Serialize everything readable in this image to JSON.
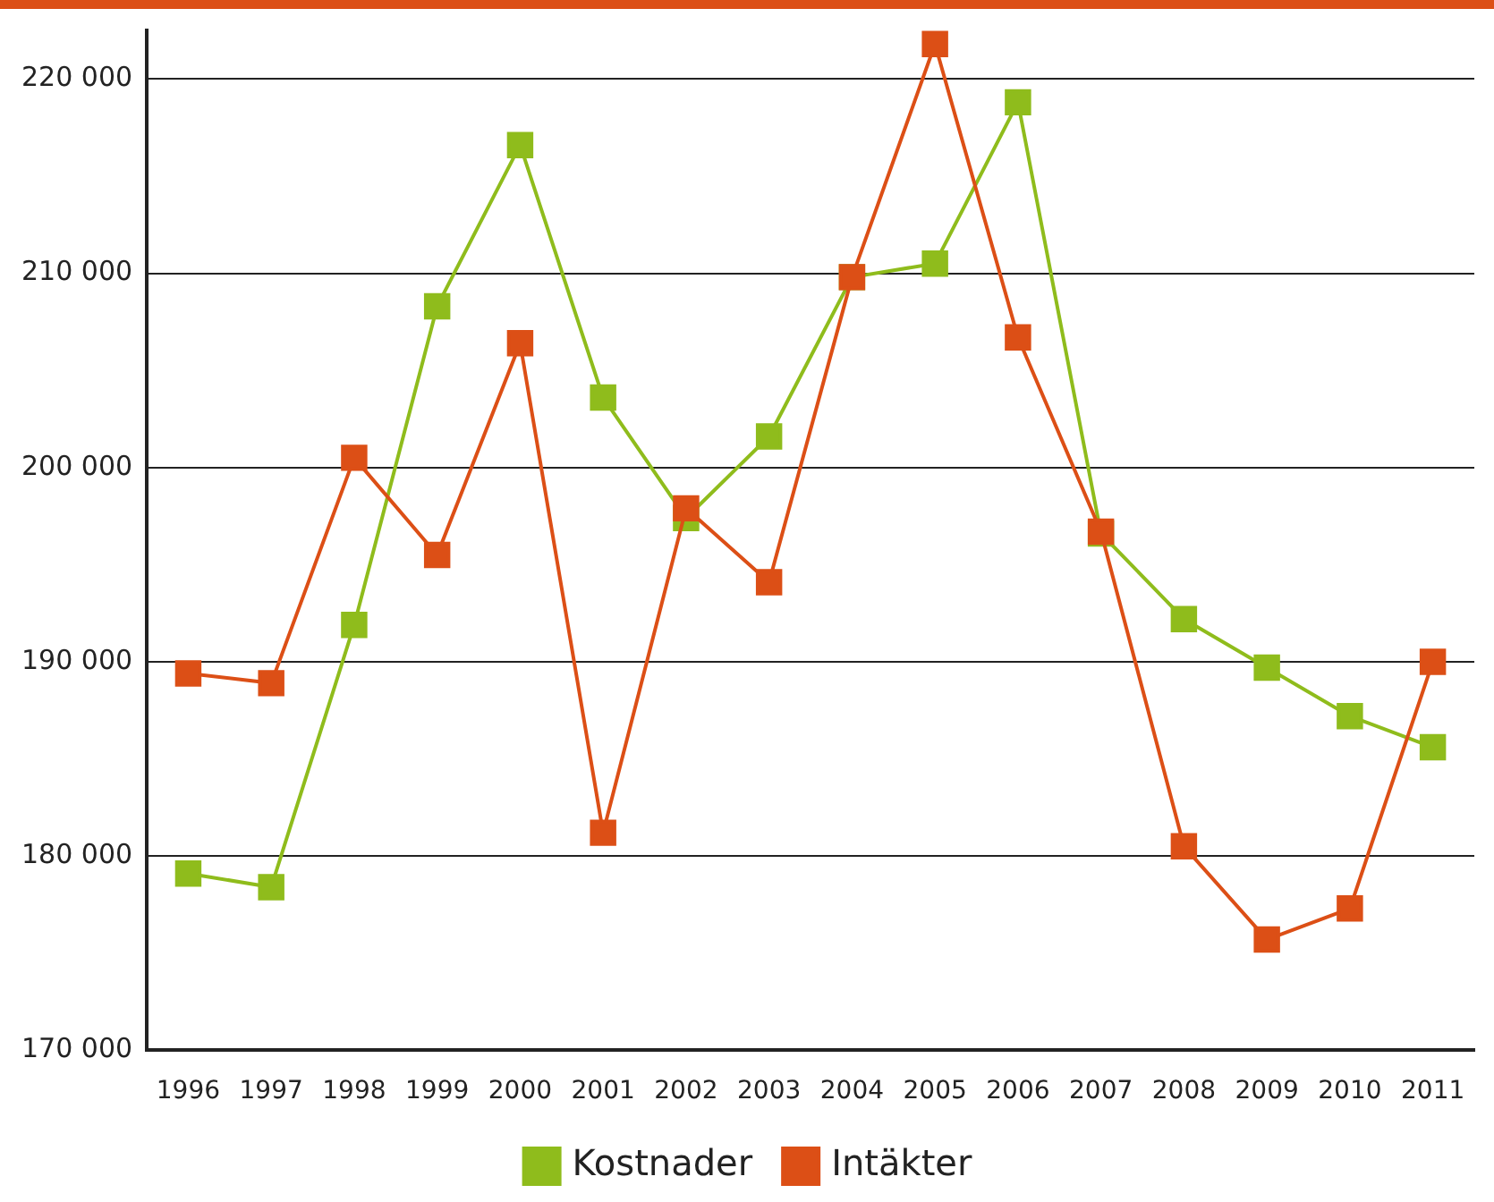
{
  "chart_data": {
    "type": "line",
    "categories": [
      "1996",
      "1997",
      "1998",
      "1999",
      "2000",
      "2001",
      "2002",
      "2003",
      "2004",
      "2005",
      "2006",
      "2007",
      "2008",
      "2009",
      "2010",
      "2011"
    ],
    "series": [
      {
        "name": "Kostnader",
        "color": "#8fbc1c",
        "values": [
          179100,
          178400,
          191900,
          208300,
          216600,
          203600,
          197400,
          201600,
          209800,
          210500,
          218800,
          196600,
          192200,
          189700,
          187200,
          185600
        ]
      },
      {
        "name": "Intäkter",
        "color": "#dc4f16",
        "values": [
          189400,
          188900,
          200500,
          195500,
          206400,
          181200,
          197900,
          194100,
          209800,
          221800,
          206700,
          196700,
          180500,
          175700,
          177300,
          190000
        ]
      }
    ],
    "ylim": [
      170000,
      222500
    ],
    "yticks": [
      {
        "value": 170000,
        "label": "170 000"
      },
      {
        "value": 180000,
        "label": "180 000"
      },
      {
        "value": 190000,
        "label": "190 000"
      },
      {
        "value": 200000,
        "label": "200 000"
      },
      {
        "value": 210000,
        "label": "210 000"
      },
      {
        "value": 220000,
        "label": "220 000"
      }
    ],
    "grid": "y",
    "legend": "bottom",
    "marker": "square",
    "line_style": "solid"
  }
}
